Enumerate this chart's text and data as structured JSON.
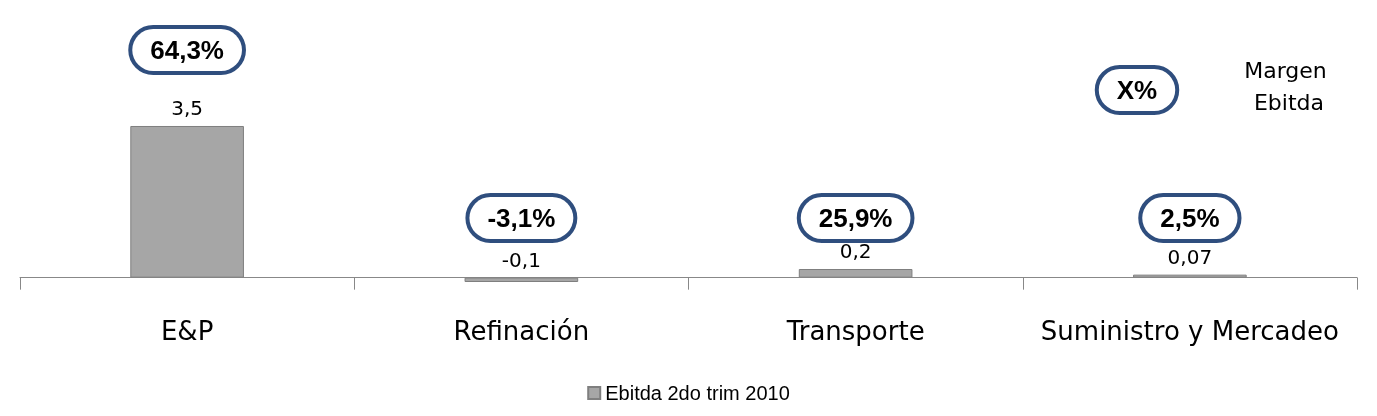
{
  "chart_data": {
    "type": "bar",
    "categories": [
      "E&P",
      "Refinación",
      "Transporte",
      "Suministro y Mercadeo"
    ],
    "series": [
      {
        "name": "Ebitda 2do trim 2010",
        "color": "#a6a6a6",
        "values": [
          3.5,
          -0.1,
          0.2,
          0.07
        ],
        "value_labels": [
          "3,5",
          "-0,1",
          "0,2",
          "0,07"
        ]
      }
    ],
    "annotations": [
      "64,3%",
      "-3,1%",
      "25,9%",
      "2,5%",
      "X%",
      "Margen Ebitda"
    ],
    "legend": "bottom",
    "grid": false
  }
}
